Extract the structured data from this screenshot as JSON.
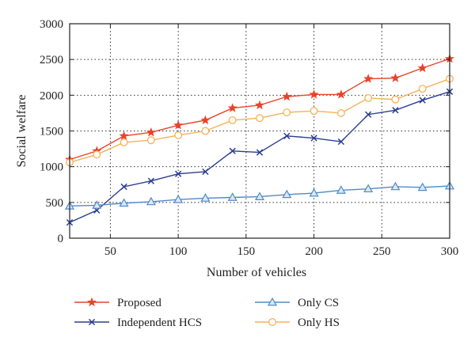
{
  "chart_data": {
    "type": "line",
    "title": "",
    "xlabel": "Number of vehicles",
    "ylabel": "Social welfare",
    "xlim": [
      20,
      300
    ],
    "ylim": [
      0,
      3000
    ],
    "xticks": [
      50,
      100,
      150,
      200,
      250,
      300
    ],
    "yticks": [
      0,
      500,
      1000,
      1500,
      2000,
      2500,
      3000
    ],
    "grid": "dotted",
    "legend_position": "below plot",
    "x": [
      20,
      40,
      60,
      80,
      100,
      120,
      140,
      160,
      180,
      200,
      220,
      240,
      260,
      280,
      300
    ],
    "series": [
      {
        "name": "Proposed",
        "color": "#e8432a",
        "marker": "star",
        "values": [
          1100,
          1220,
          1430,
          1480,
          1580,
          1650,
          1820,
          1860,
          1980,
          2010,
          2010,
          2230,
          2240,
          2380,
          2510
        ]
      },
      {
        "name": "Independent HCS",
        "color": "#2b3e8f",
        "marker": "x",
        "values": [
          220,
          390,
          720,
          800,
          900,
          930,
          1220,
          1200,
          1430,
          1400,
          1350,
          1730,
          1790,
          1930,
          2050
        ]
      },
      {
        "name": "Only CS",
        "color": "#4f8ac9",
        "marker": "triangle",
        "values": [
          450,
          460,
          490,
          510,
          540,
          560,
          570,
          580,
          610,
          630,
          670,
          690,
          720,
          710,
          730
        ]
      },
      {
        "name": "Only HS",
        "color": "#f5b15a",
        "marker": "circle",
        "values": [
          1060,
          1170,
          1340,
          1370,
          1440,
          1500,
          1650,
          1680,
          1760,
          1780,
          1750,
          1960,
          1940,
          2090,
          2230
        ]
      }
    ]
  }
}
